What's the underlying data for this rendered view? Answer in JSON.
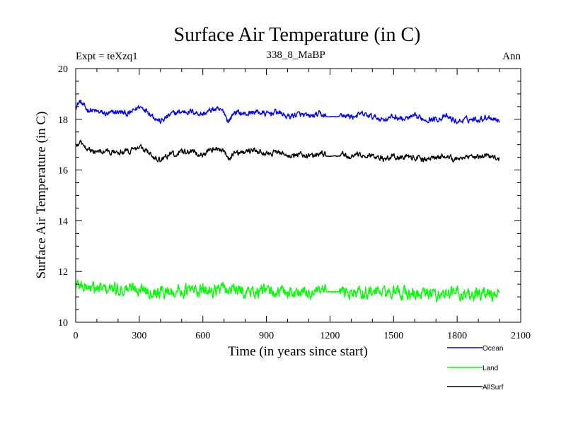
{
  "chart_data": {
    "type": "line",
    "title": "Surface Air Temperature (in C)",
    "subtitle_left": "Expt = teXzq1",
    "subtitle_center": "338_8_MaBP",
    "subtitle_right": "Ann",
    "xlabel": "Time (in years since start)",
    "ylabel": "Surface Air Temperature (in C)",
    "xlim": [
      0,
      2100
    ],
    "ylim": [
      10,
      20
    ],
    "x_ticks": [
      0,
      300,
      600,
      900,
      1200,
      1500,
      1800,
      2100
    ],
    "y_ticks": [
      10,
      12,
      14,
      16,
      18,
      20
    ],
    "x_minor_step": 100,
    "y_minor_step": 0.5,
    "x_range": [
      0,
      2000
    ],
    "series": [
      {
        "name": "Ocean",
        "color": "#0000ff",
        "anchor_x": [
          0,
          20,
          50,
          100,
          150,
          200,
          250,
          300,
          330,
          370,
          400,
          450,
          500,
          550,
          600,
          650,
          700,
          720,
          750,
          800,
          850,
          900,
          950,
          1000,
          1050,
          1100,
          1150,
          1200,
          1240,
          1250,
          1300,
          1350,
          1400,
          1450,
          1500,
          1550,
          1600,
          1650,
          1700,
          1750,
          1800,
          1850,
          1900,
          1950,
          2000
        ],
        "anchor_y": [
          18.5,
          18.7,
          18.4,
          18.3,
          18.2,
          18.3,
          18.2,
          18.5,
          18.4,
          18.1,
          17.9,
          18.2,
          18.3,
          18.3,
          18.2,
          18.4,
          18.3,
          17.9,
          18.3,
          18.2,
          18.3,
          18.2,
          18.3,
          18.1,
          18.2,
          18.1,
          18.2,
          18.1,
          17.9,
          18.2,
          18.1,
          18.2,
          18.1,
          18.0,
          18.1,
          18.0,
          18.1,
          18.0,
          18.0,
          18.1,
          17.9,
          18.0,
          18.0,
          18.1,
          17.95
        ],
        "noise": 0.09
      },
      {
        "name": "Land",
        "color": "#00ff00",
        "anchor_x": [
          0,
          50,
          100,
          200,
          300,
          400,
          500,
          600,
          700,
          800,
          900,
          1000,
          1100,
          1200,
          1240,
          1250,
          1300,
          1400,
          1500,
          1600,
          1700,
          1800,
          1900,
          2000
        ],
        "anchor_y": [
          11.5,
          11.4,
          11.3,
          11.3,
          11.35,
          11.2,
          11.25,
          11.25,
          11.3,
          11.2,
          11.2,
          11.2,
          11.15,
          11.2,
          11.1,
          11.2,
          11.15,
          11.2,
          11.15,
          11.1,
          11.1,
          11.15,
          11.1,
          11.1
        ],
        "noise": 0.2
      },
      {
        "name": "AllSurf",
        "color": "#000000",
        "anchor_x": [
          0,
          20,
          50,
          100,
          150,
          200,
          250,
          300,
          330,
          370,
          400,
          450,
          500,
          550,
          600,
          650,
          700,
          720,
          750,
          800,
          850,
          900,
          950,
          1000,
          1050,
          1100,
          1150,
          1200,
          1240,
          1250,
          1300,
          1350,
          1400,
          1450,
          1500,
          1550,
          1600,
          1650,
          1700,
          1750,
          1800,
          1850,
          1900,
          1950,
          2000
        ],
        "anchor_y": [
          16.9,
          17.1,
          16.9,
          16.7,
          16.7,
          16.7,
          16.75,
          16.95,
          16.8,
          16.5,
          16.4,
          16.65,
          16.7,
          16.75,
          16.6,
          16.85,
          16.75,
          16.4,
          16.7,
          16.7,
          16.75,
          16.65,
          16.7,
          16.55,
          16.65,
          16.55,
          16.65,
          16.55,
          16.4,
          16.6,
          16.55,
          16.6,
          16.55,
          16.45,
          16.55,
          16.5,
          16.5,
          16.45,
          16.5,
          16.55,
          16.4,
          16.5,
          16.45,
          16.55,
          16.45
        ],
        "noise": 0.09
      }
    ],
    "legend": [
      {
        "label": "Ocean",
        "color": "#0000ff"
      },
      {
        "label": "Land",
        "color": "#00ff00"
      },
      {
        "label": "AllSurf",
        "color": "#000000"
      }
    ]
  }
}
